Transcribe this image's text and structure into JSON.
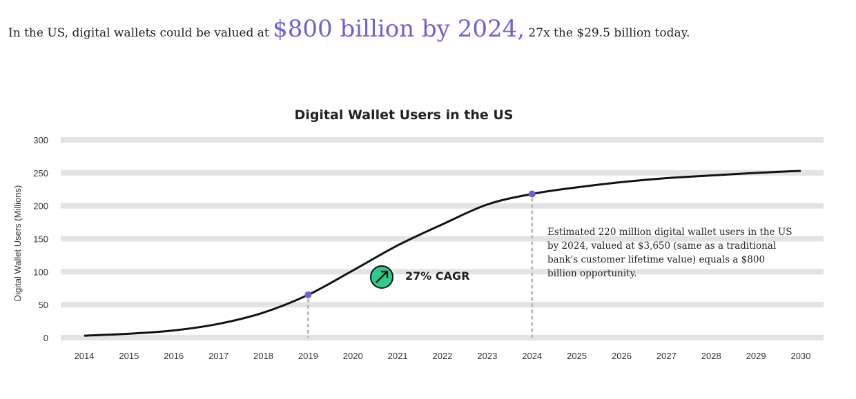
{
  "headline": {
    "pre": "In the US, digital wallets could be valued at ",
    "highlight": "$800 billion by 2024,",
    "post": " 27x the $29.5 billion today."
  },
  "colors": {
    "accent": "#6b62d6",
    "line": "#111111",
    "grid": "#e3e3e3",
    "cagr": "#2ecc8f"
  },
  "chart_data": {
    "type": "line",
    "title": "Digital Wallet Users in the US",
    "ylabel": "Digital Wallet Users (Millions)",
    "xlabel": "",
    "ylim": [
      0,
      300
    ],
    "yticks": [
      0,
      50,
      100,
      150,
      200,
      250,
      300
    ],
    "grid": true,
    "x": [
      "2014",
      "2015",
      "2016",
      "2017",
      "2018",
      "2019",
      "2020",
      "2021",
      "2022",
      "2023",
      "2024",
      "2025",
      "2026",
      "2027",
      "2028",
      "2029",
      "2030"
    ],
    "values": [
      3,
      6,
      11,
      21,
      38,
      65,
      102,
      140,
      172,
      202,
      218,
      228,
      236,
      242,
      246,
      250,
      253
    ],
    "highlighted": [
      "2019",
      "2024"
    ],
    "annotations": {
      "cagr": "27% CAGR",
      "note": "Estimated 220 million digital wallet users in the US by 2024, valued at $3,650 (same as a traditional bank's customer lifetime value) equals a $800 billion opportunity."
    }
  }
}
